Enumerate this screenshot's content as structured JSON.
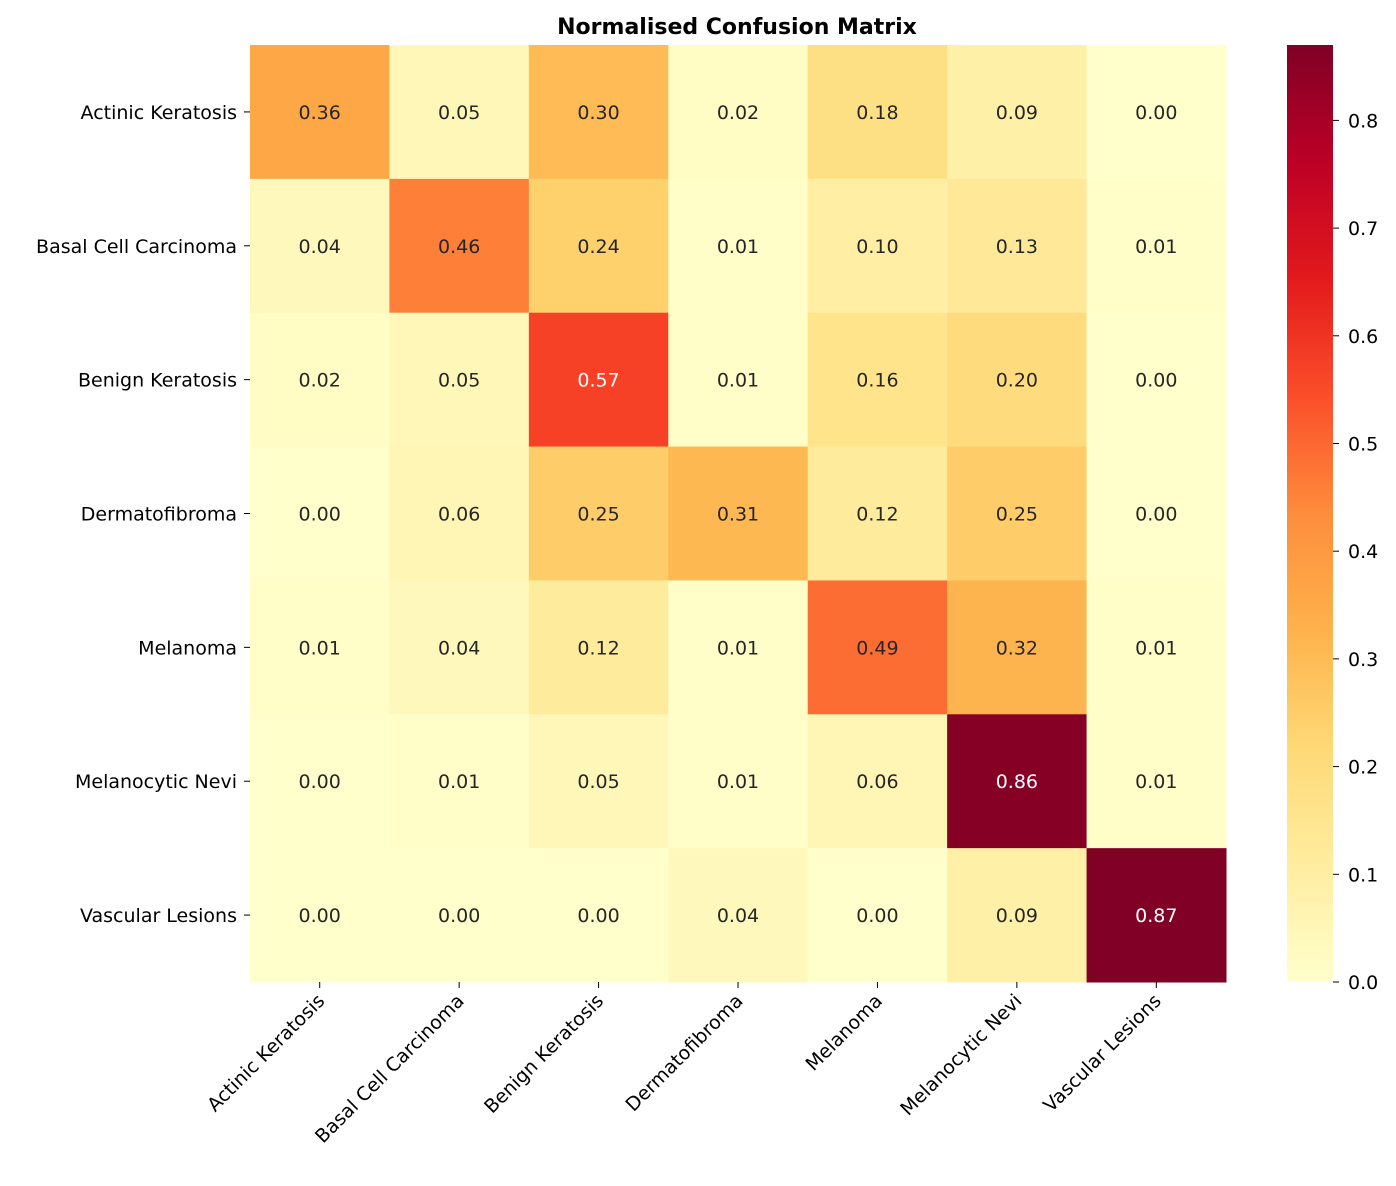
{
  "chart_data": {
    "type": "heatmap",
    "title": "Normalised Confusion Matrix",
    "xlabel": "",
    "ylabel": "",
    "row_labels": [
      "Actinic Keratosis",
      "Basal Cell Carcinoma",
      "Benign Keratosis",
      "Dermatofibroma",
      "Melanoma",
      "Melanocytic Nevi",
      "Vascular Lesions"
    ],
    "col_labels": [
      "Actinic Keratosis",
      "Basal Cell Carcinoma",
      "Benign Keratosis",
      "Dermatofibroma",
      "Melanoma",
      "Melanocytic Nevi",
      "Vascular Lesions"
    ],
    "values": [
      [
        0.36,
        0.05,
        0.3,
        0.02,
        0.18,
        0.09,
        0.0
      ],
      [
        0.04,
        0.46,
        0.24,
        0.01,
        0.1,
        0.13,
        0.01
      ],
      [
        0.02,
        0.05,
        0.57,
        0.01,
        0.16,
        0.2,
        0.0
      ],
      [
        0.0,
        0.06,
        0.25,
        0.31,
        0.12,
        0.25,
        0.0
      ],
      [
        0.01,
        0.04,
        0.12,
        0.01,
        0.49,
        0.32,
        0.01
      ],
      [
        0.0,
        0.01,
        0.05,
        0.01,
        0.06,
        0.86,
        0.01
      ],
      [
        0.0,
        0.0,
        0.0,
        0.04,
        0.0,
        0.09,
        0.87
      ]
    ],
    "colormap": "YlOrRd",
    "colormap_stops": [
      "#ffffcc",
      "#ffeda0",
      "#fed976",
      "#feb24c",
      "#fd8d3c",
      "#fc4e2a",
      "#e31a1c",
      "#bd0026",
      "#800026"
    ],
    "vmin": 0.0,
    "vmax": 0.87,
    "colorbar_ticks": [
      "0.0",
      "0.1",
      "0.2",
      "0.3",
      "0.4",
      "0.5",
      "0.6",
      "0.7",
      "0.8"
    ],
    "annotation_format": "0.00",
    "grid": false,
    "legend": "colorbar-right"
  }
}
